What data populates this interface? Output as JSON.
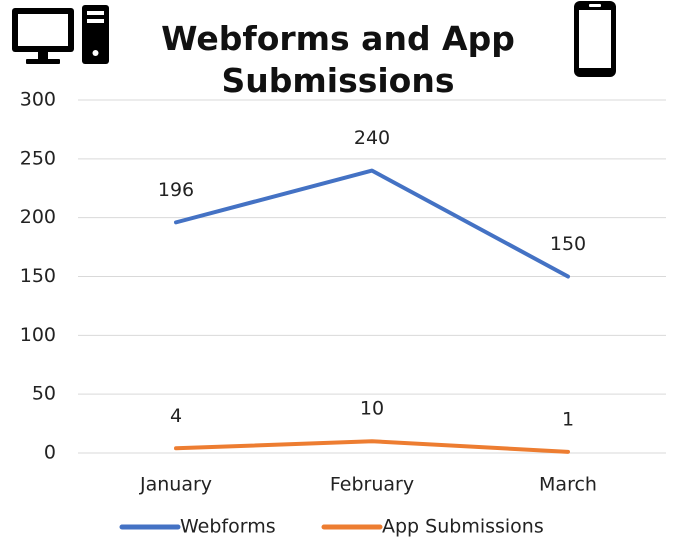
{
  "chart_data": {
    "type": "line",
    "title": "Webforms and App Submissions",
    "categories": [
      "January",
      "February",
      "March"
    ],
    "series": [
      {
        "name": "Webforms",
        "color": "#4472c4",
        "values": [
          196,
          240,
          150
        ]
      },
      {
        "name": "App Submissions",
        "color": "#ed7d31",
        "values": [
          4,
          10,
          1
        ]
      }
    ],
    "ylim": [
      0,
      300
    ],
    "yticks": [
      0,
      50,
      100,
      150,
      200,
      250,
      300
    ],
    "grid": true,
    "legend": "bottom"
  }
}
